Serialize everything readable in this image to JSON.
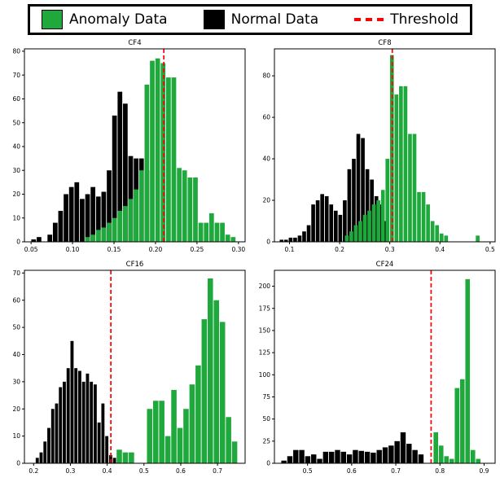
{
  "legend": {
    "anomaly_label": "Anomaly Data",
    "normal_label": "Normal Data",
    "threshold_label": "Threshold",
    "anomaly_color": "#1fa83c",
    "normal_color": "#000000",
    "threshold_color": "#ff0000"
  },
  "chart_data": [
    {
      "type": "bar",
      "title": "CF4",
      "xlim": [
        0.042,
        0.308
      ],
      "ylim": [
        0,
        81
      ],
      "xticks": [
        0.05,
        0.1,
        0.15,
        0.2,
        0.25,
        0.3
      ],
      "xtick_labels": [
        "0.05",
        "0.10",
        "0.15",
        "0.20",
        "0.25",
        "0.30"
      ],
      "yticks": [
        0,
        10,
        20,
        30,
        40,
        50,
        60,
        70,
        80
      ],
      "threshold": 0.21,
      "series": [
        {
          "name": "Normal Data",
          "color": "#000000",
          "start": 0.05,
          "binw": 0.0065,
          "values": [
            1,
            2,
            0,
            3,
            8,
            13,
            20,
            23,
            25,
            18,
            20,
            23,
            19,
            21,
            30,
            53,
            63,
            58,
            36,
            35,
            35,
            30
          ]
        },
        {
          "name": "Anomaly Data",
          "color": "#1fa83c",
          "start": 0.115,
          "binw": 0.0065,
          "values": [
            2,
            3,
            5,
            6,
            8,
            10,
            13,
            15,
            18,
            22,
            30,
            66,
            76,
            77,
            75,
            69,
            69,
            31,
            30,
            27,
            27,
            8,
            8,
            12,
            8,
            8,
            3,
            2
          ]
        }
      ]
    },
    {
      "type": "bar",
      "title": "CF8",
      "xlim": [
        0.07,
        0.51
      ],
      "ylim": [
        0,
        93
      ],
      "xticks": [
        0.1,
        0.2,
        0.3,
        0.4,
        0.5
      ],
      "xtick_labels": [
        "0.1",
        "0.2",
        "0.3",
        "0.4",
        "0.5"
      ],
      "yticks": [
        0,
        20,
        40,
        60,
        80
      ],
      "threshold": 0.305,
      "series": [
        {
          "name": "Normal Data",
          "color": "#000000",
          "start": 0.08,
          "binw": 0.009,
          "values": [
            1,
            1,
            2,
            2,
            3,
            5,
            8,
            18,
            20,
            23,
            22,
            18,
            15,
            13,
            20,
            35,
            40,
            52,
            50,
            35,
            30,
            22,
            18,
            10
          ]
        },
        {
          "name": "Anomaly Data",
          "color": "#1fa83c",
          "start": 0.21,
          "binw": 0.009,
          "values": [
            3,
            5,
            8,
            10,
            13,
            15,
            18,
            20,
            25,
            40,
            90,
            71,
            75,
            75,
            52,
            52,
            24,
            24,
            18,
            10,
            8,
            4,
            3,
            0,
            0,
            0,
            0,
            0,
            0,
            3
          ]
        }
      ]
    },
    {
      "type": "bar",
      "title": "CF16",
      "xlim": [
        0.175,
        0.775
      ],
      "ylim": [
        0,
        71
      ],
      "xticks": [
        0.2,
        0.3,
        0.4,
        0.5,
        0.6,
        0.7
      ],
      "xtick_labels": [
        "0.2",
        "0.3",
        "0.4",
        "0.5",
        "0.6",
        "0.7"
      ],
      "yticks": [
        0,
        10,
        20,
        30,
        40,
        50,
        60,
        70
      ],
      "threshold": 0.41,
      "series": [
        {
          "name": "Normal Data",
          "color": "#000000",
          "start": 0.205,
          "binw": 0.0105,
          "values": [
            2,
            4,
            8,
            13,
            20,
            22,
            28,
            30,
            35,
            45,
            35,
            34,
            30,
            33,
            30,
            29,
            15,
            22,
            10,
            3,
            2
          ]
        },
        {
          "name": "Anomaly Data",
          "color": "#1fa83c",
          "start": 0.425,
          "binw": 0.0165,
          "values": [
            5,
            4,
            4,
            0,
            0,
            20,
            23,
            23,
            10,
            27,
            13,
            20,
            29,
            36,
            53,
            68,
            60,
            52,
            17,
            8
          ]
        }
      ]
    },
    {
      "type": "bar",
      "title": "CF24",
      "xlim": [
        0.425,
        0.925
      ],
      "ylim": [
        0,
        218
      ],
      "xticks": [
        0.5,
        0.6,
        0.7,
        0.8,
        0.9
      ],
      "xtick_labels": [
        "0.5",
        "0.6",
        "0.7",
        "0.8",
        "0.9"
      ],
      "yticks": [
        0,
        25,
        50,
        75,
        100,
        125,
        150,
        175,
        200
      ],
      "threshold": 0.78,
      "series": [
        {
          "name": "Normal Data",
          "color": "#000000",
          "start": 0.44,
          "binw": 0.0135,
          "values": [
            3,
            8,
            15,
            15,
            8,
            10,
            5,
            13,
            13,
            15,
            13,
            10,
            15,
            14,
            13,
            12,
            15,
            18,
            20,
            25,
            35,
            22,
            15,
            10
          ]
        },
        {
          "name": "Anomaly Data",
          "color": "#1fa83c",
          "start": 0.785,
          "binw": 0.012,
          "values": [
            35,
            20,
            8,
            5,
            85,
            95,
            208,
            15,
            5
          ]
        }
      ]
    }
  ]
}
